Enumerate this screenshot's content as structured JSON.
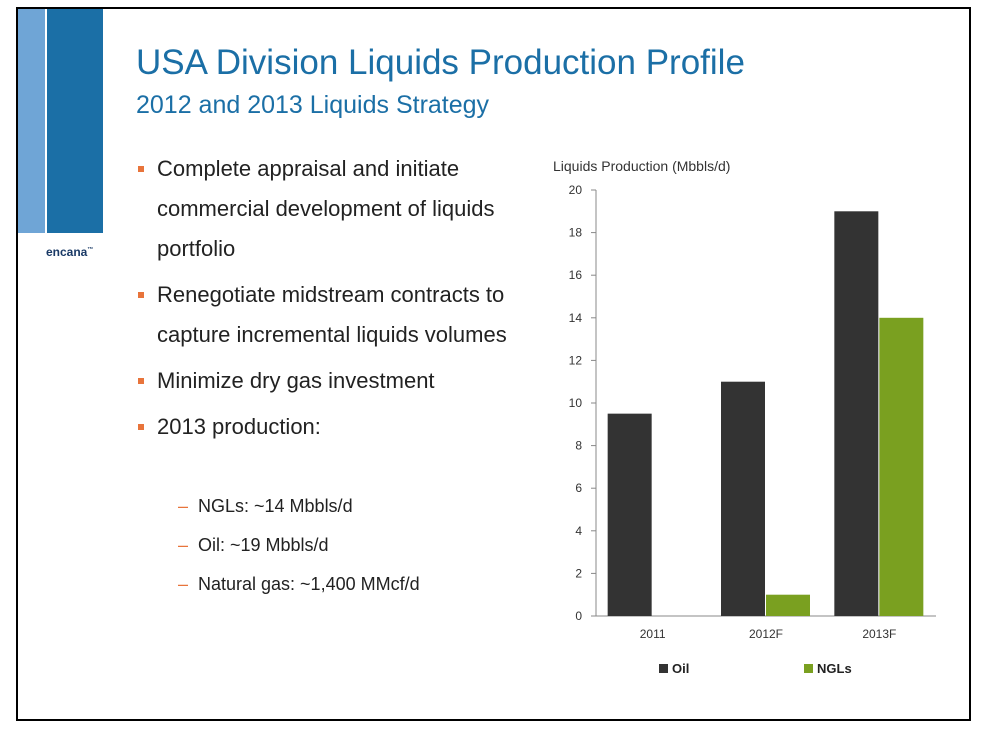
{
  "slide": {
    "title": "USA Division Liquids Production Profile",
    "subtitle": "2012 and 2013 Liquids Strategy",
    "logo": "encana",
    "bullets": [
      {
        "text": "Complete appraisal and initiate commercial development of liquids portfolio"
      },
      {
        "text": "Renegotiate midstream contracts to capture incremental liquids volumes"
      },
      {
        "text": "Minimize dry gas investment"
      },
      {
        "text": "2013 production:"
      }
    ],
    "sub_bullets": [
      {
        "text": "NGLs: ~14 Mbbls/d"
      },
      {
        "text": "Oil: ~19 Mbbls/d"
      },
      {
        "text": "Natural gas: ~1,400 MMcf/d"
      }
    ],
    "colors": {
      "accent": "#1b6fa6",
      "bullet": "#e8743b"
    }
  },
  "chart_data": {
    "type": "bar",
    "title": "Liquids Production (Mbbls/d)",
    "categories": [
      "2011",
      "2012F",
      "2013F"
    ],
    "series": [
      {
        "name": "Oil",
        "values": [
          9.5,
          11,
          19
        ],
        "color": "#333333"
      },
      {
        "name": "NGLs",
        "values": [
          0,
          1,
          14
        ],
        "color": "#7aa020"
      }
    ],
    "ylim": [
      0,
      20
    ],
    "yticks": [
      0,
      2,
      4,
      6,
      8,
      10,
      12,
      14,
      16,
      18,
      20
    ],
    "grid": false,
    "legend": "bottom"
  }
}
